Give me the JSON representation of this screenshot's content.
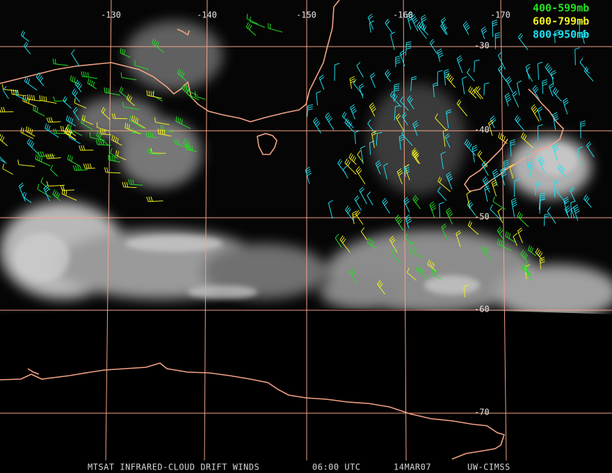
{
  "map": {
    "longitude_labels": [
      "-130",
      "-140",
      "-150",
      "-160",
      "-170"
    ],
    "latitude_labels": [
      "-30",
      "-40",
      "-50",
      "-60",
      "-70"
    ],
    "legend": [
      {
        "label": "400-599mb",
        "color": "#22e022"
      },
      {
        "label": "600-799mb",
        "color": "#f0f020"
      },
      {
        "label": "800-950mb",
        "color": "#20e0f0"
      }
    ],
    "footer": {
      "product": "MTSAT INFRARED-CLOUD DRIFT WINDS",
      "time": "06:00 UTC",
      "date": "14MAR07",
      "source": "UW-CIMSS"
    }
  }
}
